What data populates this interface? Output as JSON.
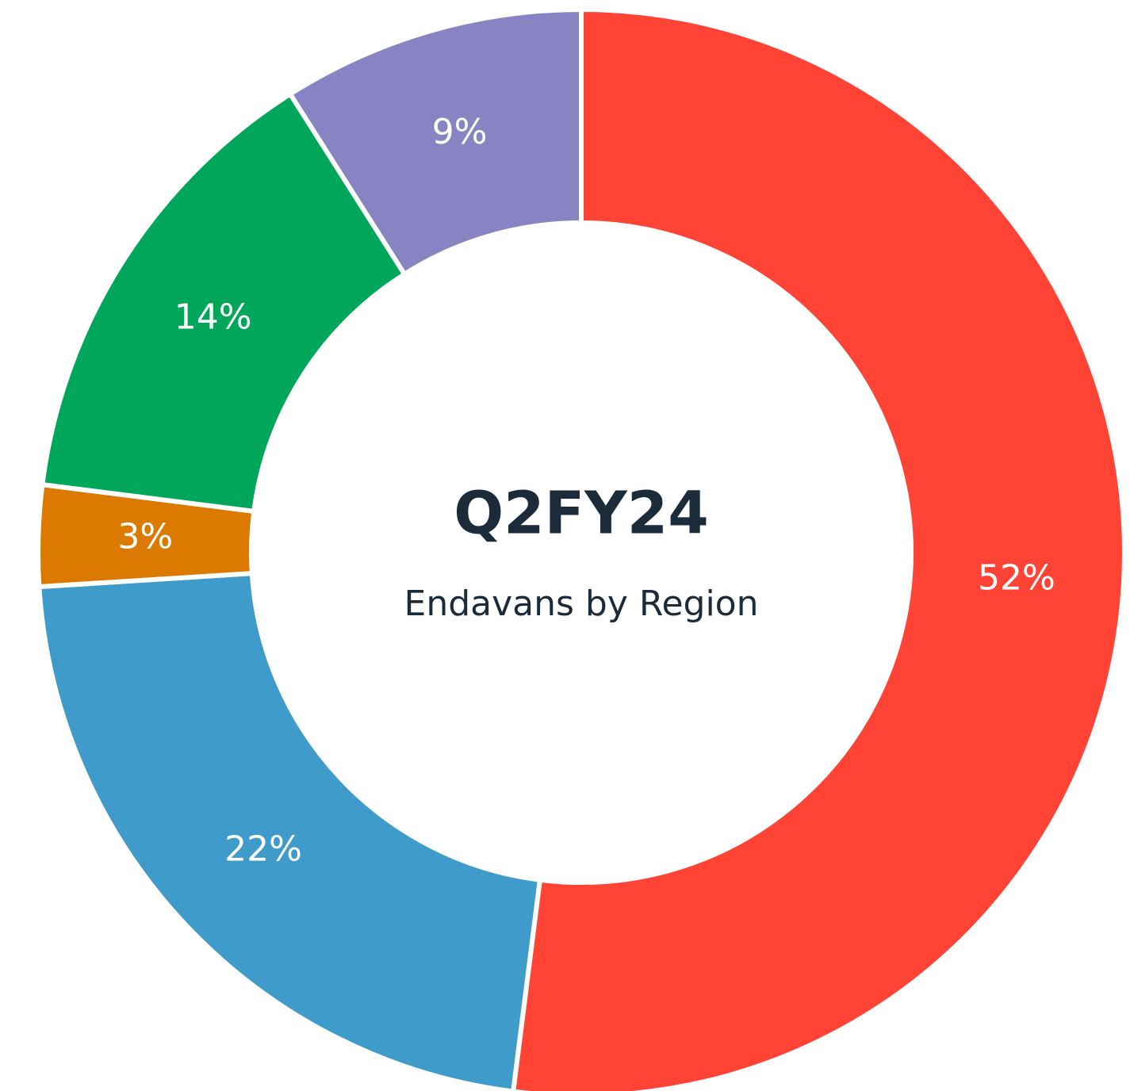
{
  "chart_data": {
    "type": "donut",
    "title": "Q2FY24",
    "subtitle": "Endavans by Region",
    "values": [
      52,
      22,
      3,
      14,
      9
    ],
    "value_labels": [
      "52%",
      "22%",
      "3%",
      "14%",
      "9%"
    ],
    "colors": [
      "#ff4436",
      "#3f9bca",
      "#dc7a00",
      "#00a65a",
      "#8884c4"
    ]
  }
}
